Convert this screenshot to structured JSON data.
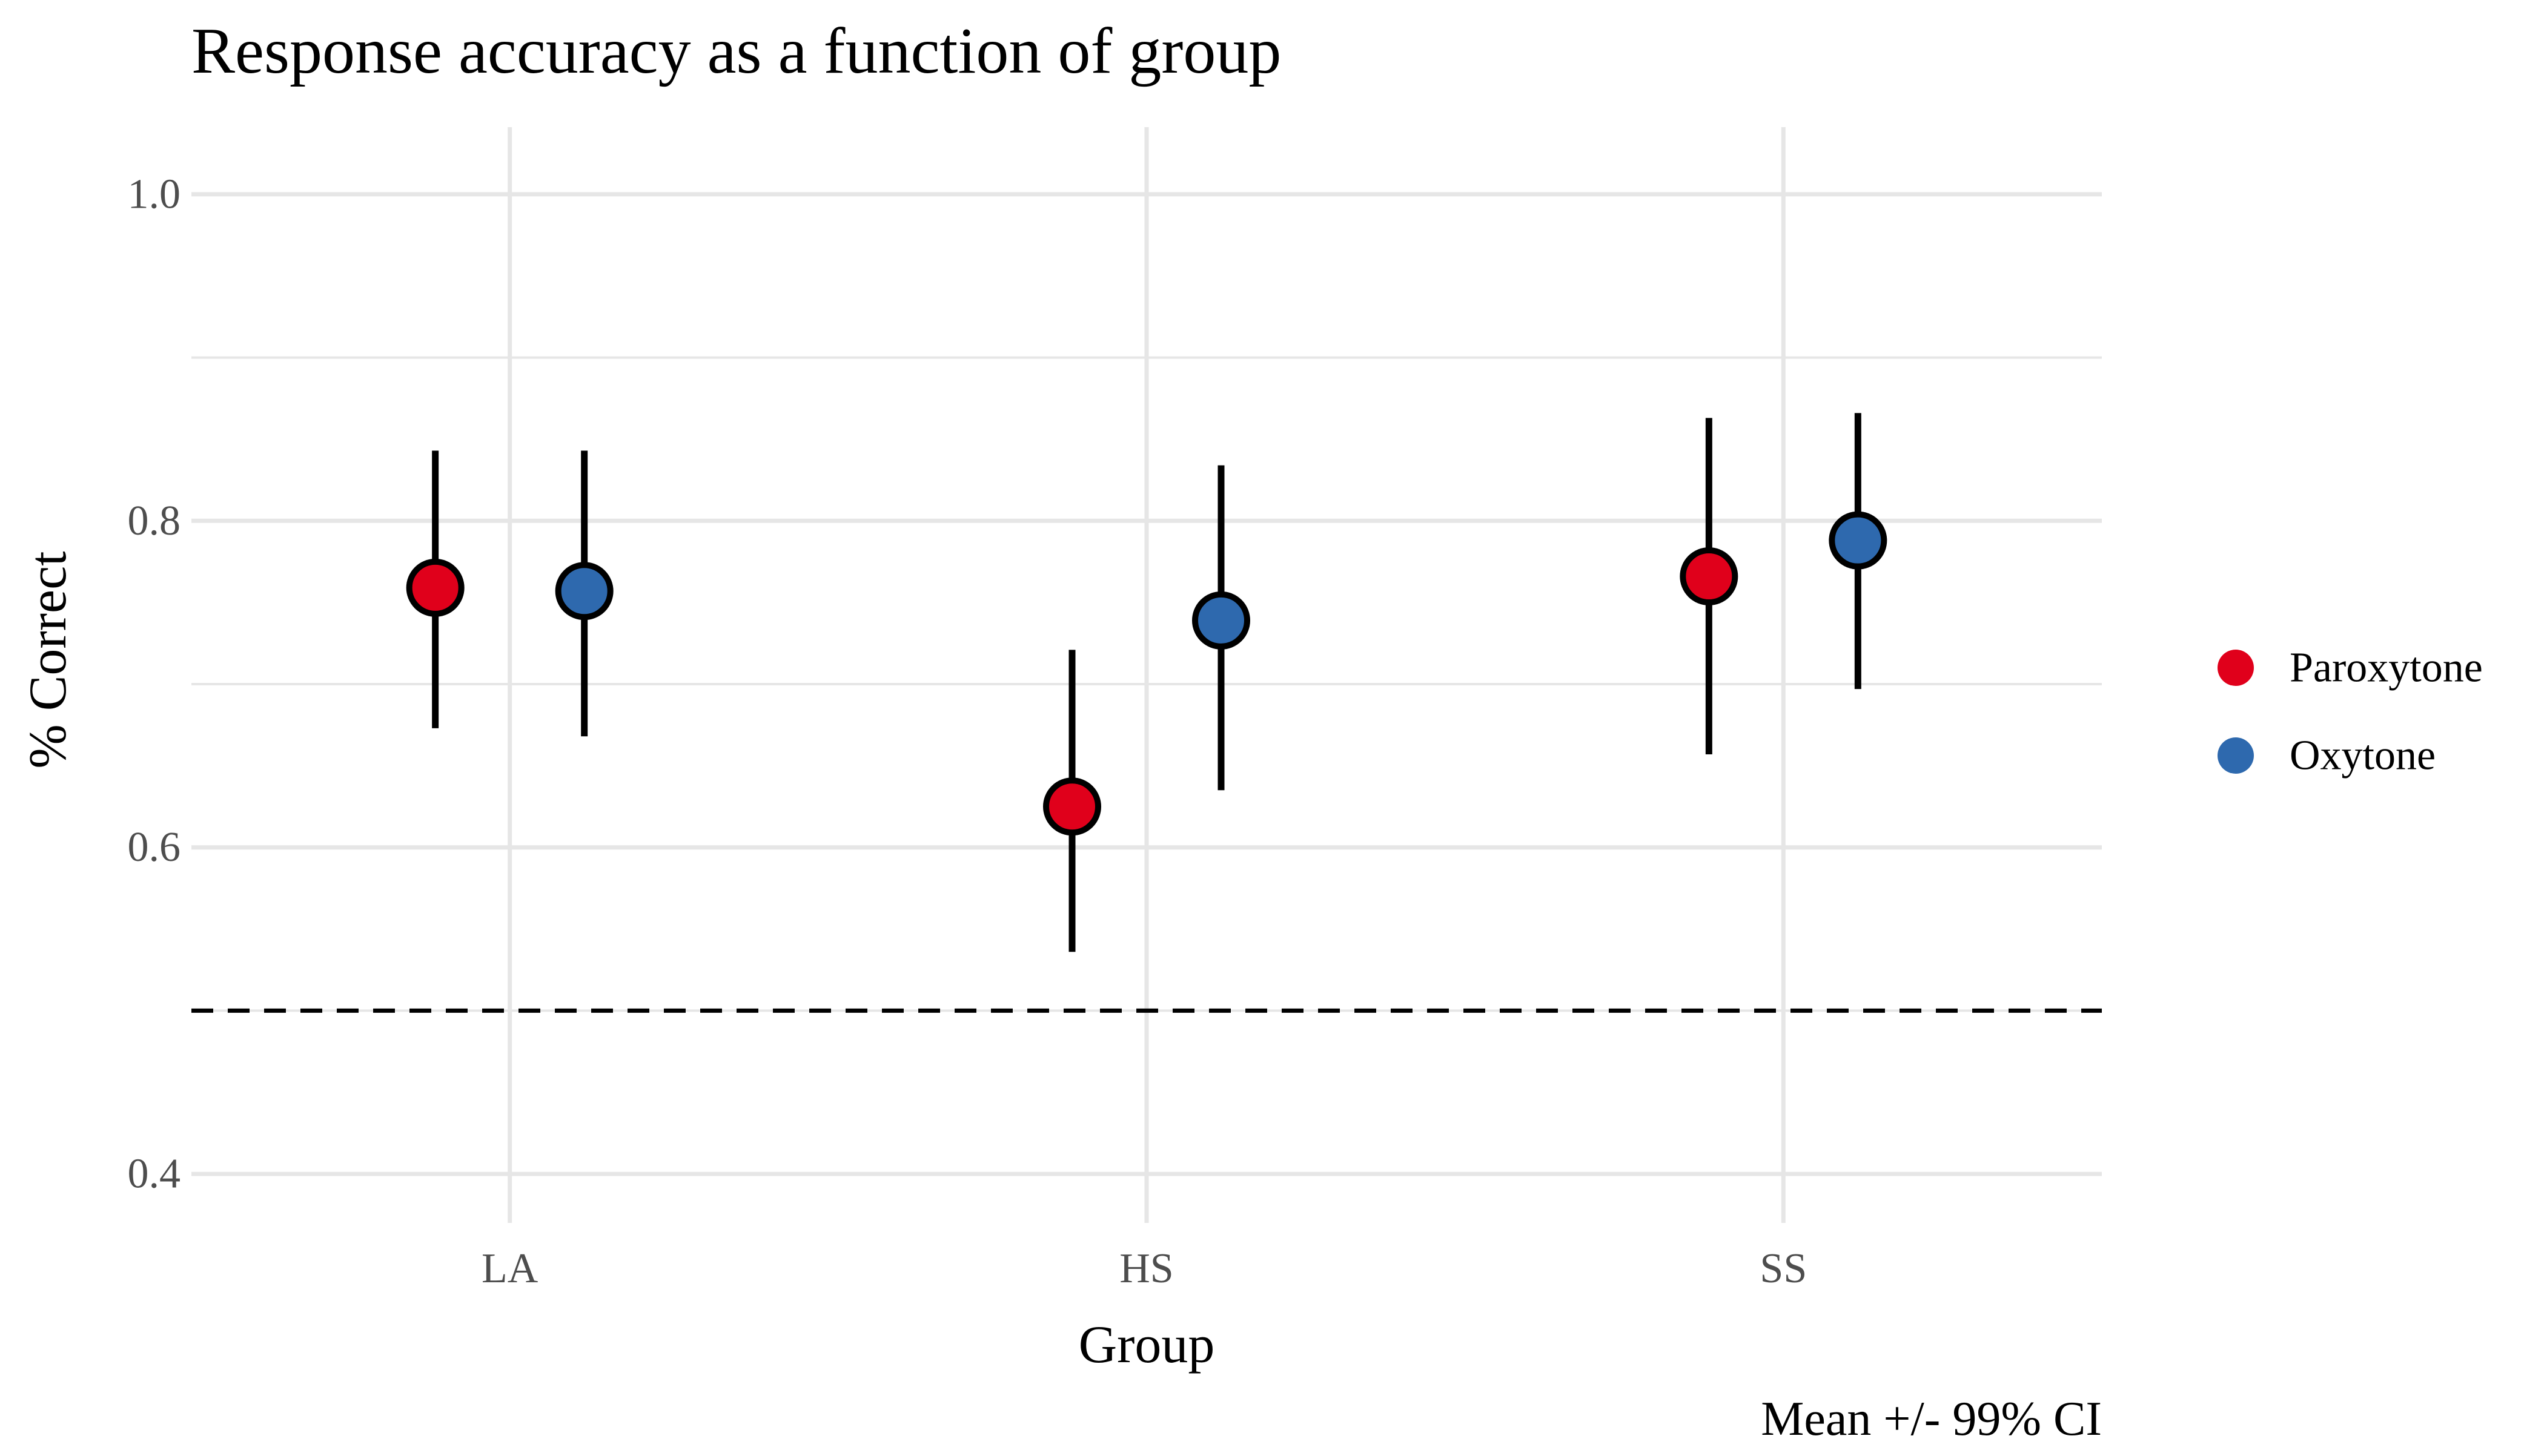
{
  "chart_data": {
    "type": "scatter",
    "title": "Response accuracy as a function of group",
    "xlabel": "Group",
    "ylabel": "% Correct",
    "caption": "Mean +/- 99% CI",
    "categories": [
      "LA",
      "HS",
      "SS"
    ],
    "ylim": [
      0.37,
      1.03
    ],
    "yticks": [
      0.4,
      0.5,
      0.6,
      0.7,
      0.8,
      0.9,
      1.0
    ],
    "ytick_labels": [
      "0.4",
      "",
      "0.6",
      "",
      "0.8",
      "",
      "1.0"
    ],
    "reference_line": {
      "y": 0.5,
      "style": "dashed"
    },
    "grid": true,
    "legend_position": "right",
    "series": [
      {
        "name": "Paroxytone",
        "color": "#E0001B",
        "values": [
          0.759,
          0.625,
          0.766
        ],
        "ci_low": [
          0.673,
          0.536,
          0.657
        ],
        "ci_high": [
          0.843,
          0.721,
          0.863
        ]
      },
      {
        "name": "Oxytone",
        "color": "#2E69AE",
        "values": [
          0.757,
          0.739,
          0.788
        ],
        "ci_low": [
          0.668,
          0.635,
          0.697
        ],
        "ci_high": [
          0.843,
          0.834,
          0.866
        ]
      }
    ]
  }
}
